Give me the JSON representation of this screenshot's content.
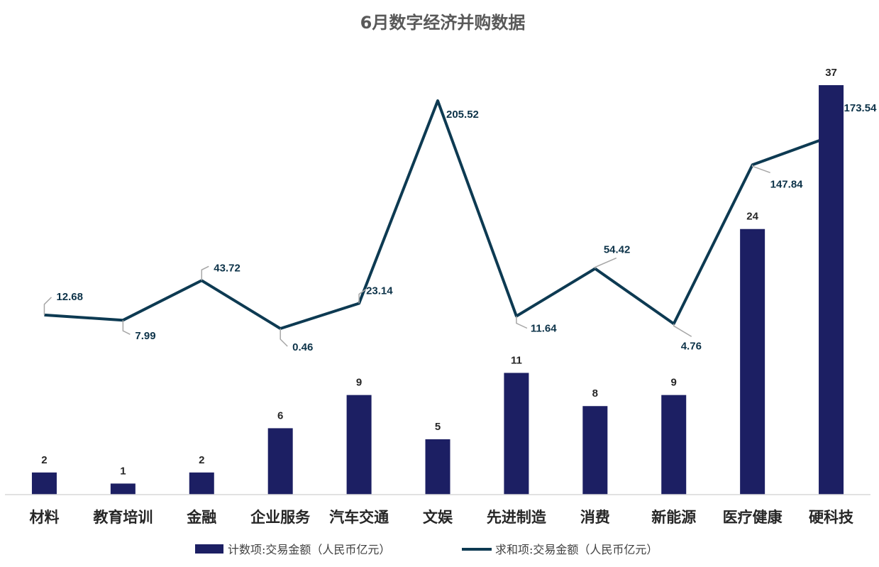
{
  "chart_data": {
    "type": "bar",
    "title": "6月数字经济并购数据",
    "categories": [
      "材料",
      "教育培训",
      "金融",
      "企业服务",
      "汽车交通",
      "文娱",
      "先进制造",
      "消费",
      "新能源",
      "医疗健康",
      "硬科技"
    ],
    "series": [
      {
        "name": "计数项:交易金额（人民币亿元）",
        "type": "bar",
        "color": "#1c1f63",
        "values": [
          2,
          1,
          2,
          6,
          9,
          5,
          11,
          8,
          9,
          24,
          37
        ],
        "labels": [
          "2",
          "1",
          "2",
          "6",
          "9",
          "5",
          "11",
          "8",
          "9",
          "24",
          "37"
        ]
      },
      {
        "name": "求和项:交易金额（人民币亿元）",
        "type": "line",
        "color": "#0d3a52",
        "values": [
          12.68,
          7.99,
          43.72,
          0.46,
          23.14,
          205.52,
          11.64,
          54.42,
          4.76,
          147.84,
          173.54
        ],
        "labels": [
          "12.68",
          "7.99",
          "43.72",
          "0.46",
          "23.14",
          "205.52",
          "11.64",
          "54.42",
          "4.76",
          "147.84",
          "173.54"
        ]
      }
    ],
    "legend_position": "bottom",
    "grid": false
  }
}
